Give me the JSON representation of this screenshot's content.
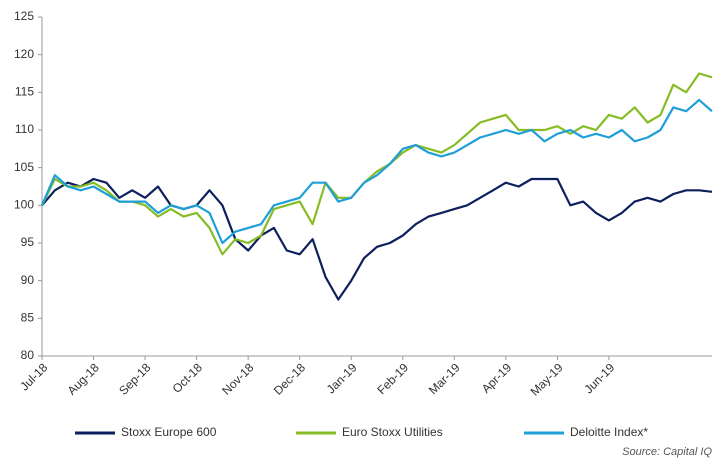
{
  "chart_data": {
    "type": "line",
    "categories": [
      "Jul-18",
      null,
      null,
      null,
      "Aug-18",
      null,
      null,
      null,
      "Sep-18",
      null,
      null,
      null,
      "Oct-18",
      null,
      null,
      null,
      "Nov-18",
      null,
      null,
      null,
      "Dec-18",
      null,
      null,
      null,
      "Jan-19",
      null,
      null,
      null,
      "Feb-19",
      null,
      null,
      null,
      "Mar-19",
      null,
      null,
      null,
      "Apr-19",
      null,
      null,
      null,
      "May-19",
      null,
      null,
      null,
      "Jun-19",
      null,
      null,
      null,
      null,
      null,
      null,
      null,
      null
    ],
    "series": [
      {
        "name": "Stoxx Europe 600",
        "color": "#0d1f5c",
        "values": [
          100,
          102,
          103,
          102.5,
          103.5,
          103,
          101,
          102,
          101,
          102.5,
          100,
          99.5,
          100,
          102,
          100,
          95.5,
          94,
          96,
          97,
          94,
          93.5,
          95.5,
          90.5,
          87.5,
          90,
          93,
          94.5,
          95,
          96,
          97.5,
          98.5,
          99,
          99.5,
          100,
          101,
          102,
          103,
          102.5,
          103.5,
          103.5,
          103.5,
          100,
          100.5,
          99,
          98,
          99,
          100.5,
          101,
          100.5,
          101.5,
          102,
          102,
          101.8
        ]
      },
      {
        "name": "Euro Stoxx Utilities",
        "color": "#86bc25",
        "values": [
          100,
          103.5,
          102.5,
          102.5,
          103,
          102,
          100.5,
          100.5,
          100,
          98.5,
          99.5,
          98.5,
          99,
          97,
          93.5,
          95.5,
          95,
          96,
          99.5,
          100,
          100.5,
          97.5,
          103,
          101,
          101,
          103,
          104.5,
          105.5,
          107,
          108,
          107.5,
          107,
          108,
          109.5,
          111,
          111.5,
          112,
          110,
          110,
          110,
          110.5,
          109.5,
          110.5,
          110,
          112,
          111.5,
          113,
          111,
          112,
          116,
          115,
          117.5,
          117
        ]
      },
      {
        "name": "Deloitte Index*",
        "color": "#1e9fd8",
        "values": [
          100,
          104,
          102.5,
          102,
          102.5,
          101.5,
          100.5,
          100.5,
          100.5,
          99,
          100,
          99.5,
          100,
          99,
          95,
          96.5,
          97,
          97.5,
          100,
          100.5,
          101,
          103,
          103,
          100.5,
          101,
          103,
          104,
          105.5,
          107.5,
          108,
          107,
          106.5,
          107,
          108,
          109,
          109.5,
          110,
          109.5,
          110,
          108.5,
          109.5,
          110,
          109,
          109.5,
          109,
          110,
          108.5,
          109,
          110,
          113,
          112.5,
          114,
          112.5
        ]
      }
    ],
    "ylim": [
      80,
      125
    ],
    "yticks": [
      80,
      85,
      90,
      95,
      100,
      105,
      110,
      115,
      120,
      125
    ],
    "grid": false,
    "legend": "bottom",
    "source": "Source: Capital IQ"
  }
}
